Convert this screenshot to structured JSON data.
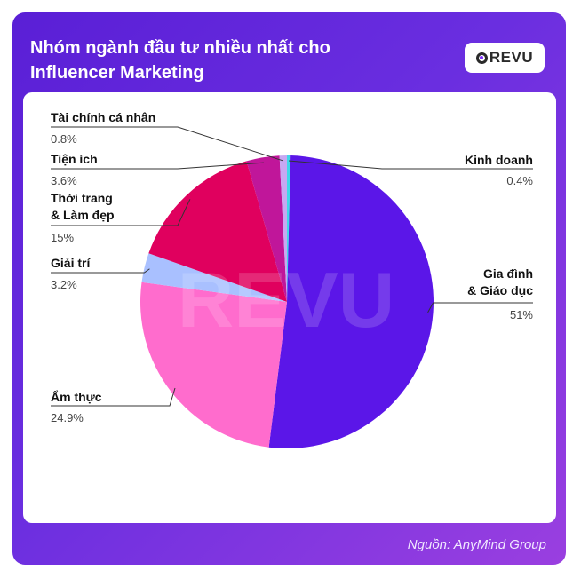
{
  "header": {
    "title": "Nhóm ngành đầu tư nhiều nhất cho Influencer Marketing",
    "logo_text": "REVU"
  },
  "watermark": "REVU",
  "footer": {
    "source": "Nguồn: AnyMind Group"
  },
  "colors": {
    "background_gradient": [
      "#5a1fd6",
      "#9a3fe0"
    ],
    "panel": "#ffffff"
  },
  "chart_data": {
    "type": "pie",
    "title": "Nhóm ngành đầu tư nhiều nhất cho Influencer Marketing",
    "slices": [
      {
        "label": "Kinh doanh",
        "display": "0.4%",
        "value": 0.4,
        "color": "#3fd8e8",
        "side": "right"
      },
      {
        "label": "Gia đình\n& Giáo dục",
        "display": "51%",
        "value": 51,
        "color": "#5b16e8",
        "side": "right"
      },
      {
        "label": "Ẩm thực",
        "display": "24.9%",
        "value": 24.9,
        "color": "#ff6ccd",
        "side": "left"
      },
      {
        "label": "Giải trí",
        "display": "3.2%",
        "value": 3.2,
        "color": "#a9c0ff",
        "side": "left"
      },
      {
        "label": "Thời trang\n& Làm đẹp",
        "display": "15%",
        "value": 15,
        "color": "#e0005e",
        "side": "left"
      },
      {
        "label": "Tiện ích",
        "display": "3.6%",
        "value": 3.6,
        "color": "#c0169a",
        "side": "left"
      },
      {
        "label": "Tài chính cá nhân",
        "display": "0.8%",
        "value": 0.8,
        "color": "#c7a8f2",
        "side": "left"
      }
    ],
    "start_angle_deg": 0,
    "direction": "clockwise",
    "legend": "leader-line labels"
  }
}
